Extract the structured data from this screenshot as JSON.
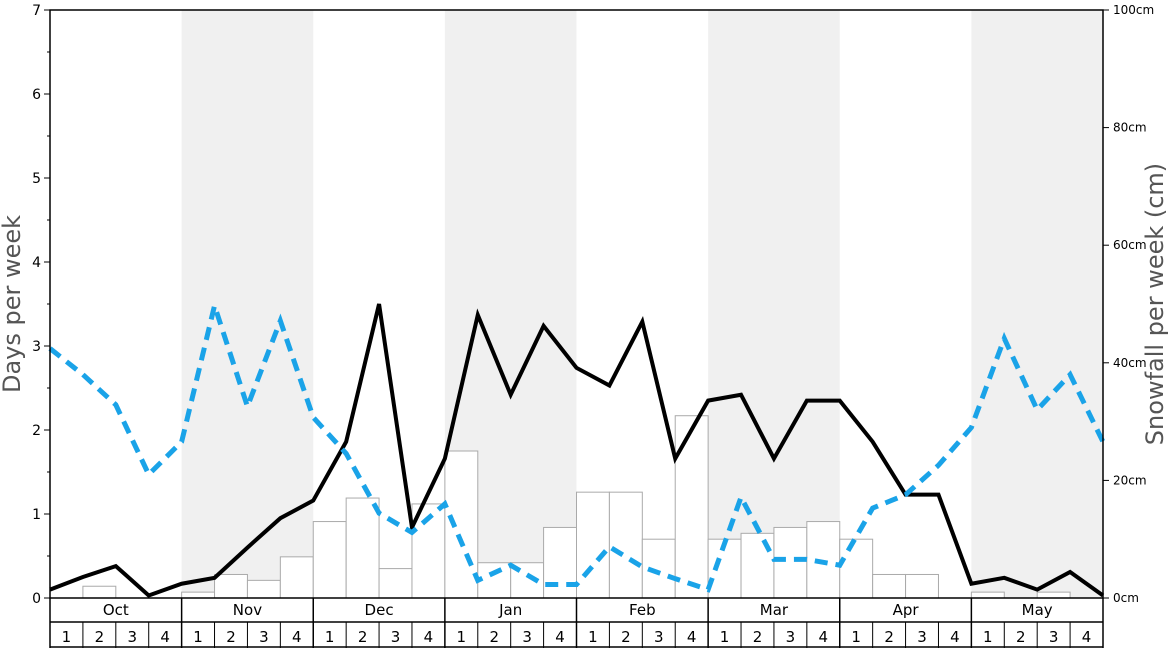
{
  "chart_data": {
    "type": "bar",
    "ylabel_left": "Days per week",
    "ylabel_right": "Snowfall per week (cm)",
    "ylim_left": [
      0,
      7
    ],
    "ylim_right": [
      0,
      100
    ],
    "yticks_left": [
      "0",
      "1",
      "2",
      "3",
      "4",
      "5",
      "6",
      "7"
    ],
    "yticks_right": [
      "0cm",
      "20cm",
      "40cm",
      "60cm",
      "80cm",
      "100cm"
    ],
    "months": [
      "Oct",
      "Nov",
      "Dec",
      "Jan",
      "Feb",
      "Mar",
      "Apr",
      "May"
    ],
    "weeks": [
      "1",
      "2",
      "3",
      "4"
    ],
    "shaded_months": [
      "Nov",
      "Jan",
      "Mar",
      "May"
    ],
    "grid": false,
    "series": [
      {
        "kind": "bar",
        "axis": "right",
        "color": "#ffffff",
        "edge_color": "#aaaaaa",
        "values": [
          0,
          2,
          0,
          0,
          1,
          4,
          3,
          7,
          13,
          17,
          5,
          16,
          25,
          6,
          6,
          12,
          18,
          18,
          10,
          31,
          10,
          11,
          12,
          13,
          10,
          4,
          4,
          0,
          1,
          0,
          1,
          0
        ]
      },
      {
        "kind": "line",
        "axis": "left",
        "color": "#000000",
        "style": "solid",
        "values": [
          0.1,
          0.25,
          0.38,
          0.03,
          0.17,
          0.24,
          0.6,
          0.95,
          1.16,
          1.86,
          3.5,
          0.84,
          1.66,
          3.37,
          2.42,
          3.24,
          2.74,
          2.53,
          3.29,
          1.66,
          2.35,
          2.42,
          1.66,
          2.35,
          2.35,
          1.86,
          1.23,
          1.23,
          0.17,
          0.24,
          0.1,
          0.31,
          0.03
        ]
      },
      {
        "kind": "line",
        "axis": "left",
        "color": "#1aa3e8",
        "style": "dashed",
        "values": [
          2.97,
          2.66,
          2.3,
          1.47,
          1.86,
          3.48,
          2.28,
          3.3,
          2.15,
          1.72,
          1.01,
          0.78,
          1.12,
          0.21,
          0.39,
          0.16,
          0.16,
          0.61,
          0.37,
          0.23,
          0.1,
          1.2,
          0.46,
          0.46,
          0.39,
          1.07,
          1.23,
          1.58,
          2.03,
          3.09,
          2.24,
          2.66,
          1.86
        ]
      }
    ]
  }
}
